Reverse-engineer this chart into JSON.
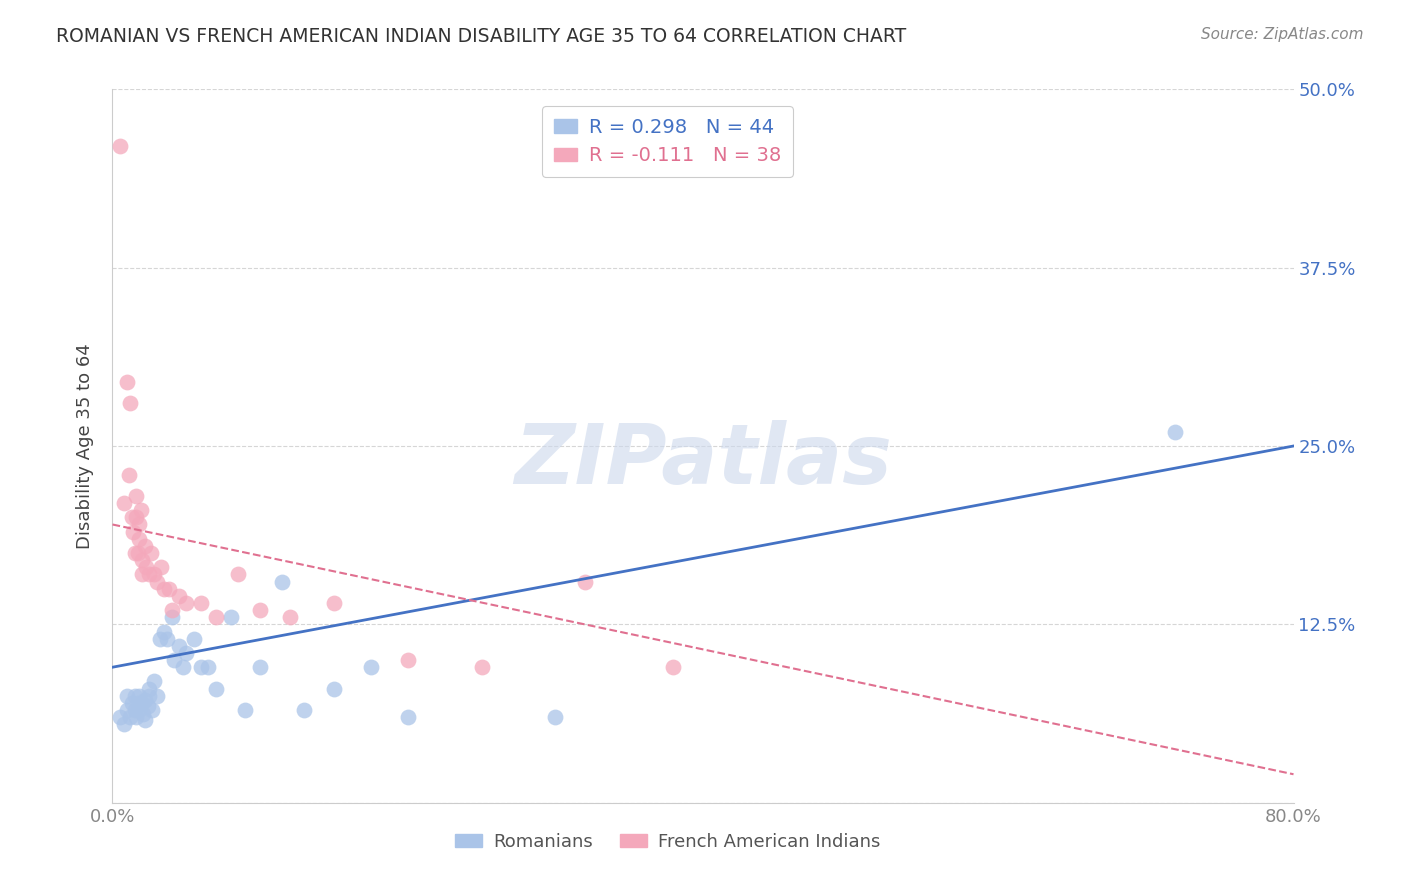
{
  "title": "ROMANIAN VS FRENCH AMERICAN INDIAN DISABILITY AGE 35 TO 64 CORRELATION CHART",
  "source": "Source: ZipAtlas.com",
  "ylabel": "Disability Age 35 to 64",
  "xlim": [
    0.0,
    0.8
  ],
  "ylim": [
    0.0,
    0.5
  ],
  "xtick_labels": [
    "0.0%",
    "80.0%"
  ],
  "ytick_labels": [
    "",
    "12.5%",
    "25.0%",
    "37.5%",
    "50.0%"
  ],
  "yticks": [
    0.0,
    0.125,
    0.25,
    0.375,
    0.5
  ],
  "watermark": "ZIPatlas",
  "legend_R1": "R = 0.298",
  "legend_N1": "N = 44",
  "legend_R2": "R = -0.111",
  "legend_N2": "N = 38",
  "color_blue": "#aac4e8",
  "color_pink": "#f4a8bb",
  "line_blue": "#4472c4",
  "line_pink": "#e07090",
  "background": "#ffffff",
  "blue_x": [
    0.005,
    0.008,
    0.01,
    0.01,
    0.012,
    0.013,
    0.015,
    0.015,
    0.016,
    0.017,
    0.018,
    0.018,
    0.02,
    0.021,
    0.022,
    0.022,
    0.024,
    0.025,
    0.025,
    0.027,
    0.028,
    0.03,
    0.032,
    0.035,
    0.037,
    0.04,
    0.042,
    0.045,
    0.048,
    0.05,
    0.055,
    0.06,
    0.065,
    0.07,
    0.08,
    0.09,
    0.1,
    0.115,
    0.13,
    0.15,
    0.175,
    0.2,
    0.3,
    0.72
  ],
  "blue_y": [
    0.06,
    0.055,
    0.065,
    0.075,
    0.06,
    0.07,
    0.065,
    0.075,
    0.06,
    0.07,
    0.075,
    0.065,
    0.07,
    0.062,
    0.058,
    0.072,
    0.068,
    0.08,
    0.075,
    0.065,
    0.085,
    0.075,
    0.115,
    0.12,
    0.115,
    0.13,
    0.1,
    0.11,
    0.095,
    0.105,
    0.115,
    0.095,
    0.095,
    0.08,
    0.13,
    0.065,
    0.095,
    0.155,
    0.065,
    0.08,
    0.095,
    0.06,
    0.06,
    0.26
  ],
  "pink_x": [
    0.005,
    0.008,
    0.01,
    0.011,
    0.012,
    0.013,
    0.014,
    0.015,
    0.016,
    0.016,
    0.017,
    0.018,
    0.018,
    0.019,
    0.02,
    0.02,
    0.022,
    0.023,
    0.025,
    0.026,
    0.028,
    0.03,
    0.033,
    0.035,
    0.038,
    0.04,
    0.045,
    0.05,
    0.06,
    0.07,
    0.085,
    0.1,
    0.12,
    0.15,
    0.2,
    0.25,
    0.32,
    0.38
  ],
  "pink_y": [
    0.46,
    0.21,
    0.295,
    0.23,
    0.28,
    0.2,
    0.19,
    0.175,
    0.2,
    0.215,
    0.175,
    0.185,
    0.195,
    0.205,
    0.17,
    0.16,
    0.18,
    0.165,
    0.16,
    0.175,
    0.16,
    0.155,
    0.165,
    0.15,
    0.15,
    0.135,
    0.145,
    0.14,
    0.14,
    0.13,
    0.16,
    0.135,
    0.13,
    0.14,
    0.1,
    0.095,
    0.155,
    0.095
  ],
  "grid_color": "#cccccc",
  "title_color": "#333333",
  "axis_label_color": "#444444",
  "tick_color": "#888888",
  "right_label_color": "#4472c4",
  "blue_line_start_y": 0.095,
  "blue_line_end_y": 0.25,
  "pink_line_start_y": 0.195,
  "pink_line_end_y": 0.02
}
